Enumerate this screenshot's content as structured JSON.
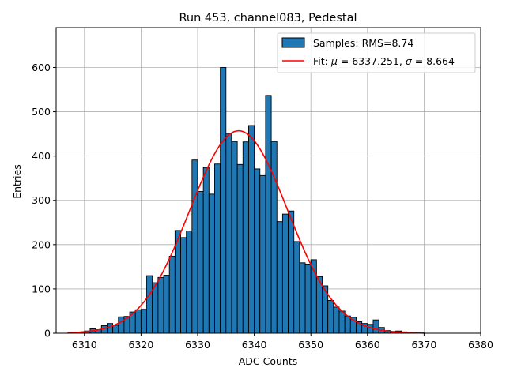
{
  "chart_data": {
    "type": "bar",
    "title": "Run 453, channel083, Pedestal",
    "xlabel": "ADC Counts",
    "ylabel": "Entries",
    "xlim": [
      6305,
      6380
    ],
    "ylim": [
      0,
      690
    ],
    "xticks": [
      6310,
      6320,
      6330,
      6340,
      6350,
      6360,
      6370,
      6380
    ],
    "yticks": [
      0,
      100,
      200,
      300,
      400,
      500,
      600
    ],
    "grid": true,
    "legend_position": "top-right",
    "bin_width": 1,
    "bins": [
      [
        6307,
        0
      ],
      [
        6308,
        1
      ],
      [
        6309,
        2
      ],
      [
        6310,
        5
      ],
      [
        6311,
        10
      ],
      [
        6312,
        8
      ],
      [
        6313,
        17
      ],
      [
        6314,
        22
      ],
      [
        6315,
        18
      ],
      [
        6316,
        37
      ],
      [
        6317,
        38
      ],
      [
        6318,
        48
      ],
      [
        6319,
        53
      ],
      [
        6320,
        54
      ],
      [
        6321,
        130
      ],
      [
        6322,
        114
      ],
      [
        6323,
        126
      ],
      [
        6324,
        131
      ],
      [
        6325,
        174
      ],
      [
        6326,
        232
      ],
      [
        6327,
        216
      ],
      [
        6328,
        231
      ],
      [
        6329,
        391
      ],
      [
        6330,
        320
      ],
      [
        6331,
        374
      ],
      [
        6332,
        314
      ],
      [
        6333,
        382
      ],
      [
        6334,
        600
      ],
      [
        6335,
        451
      ],
      [
        6336,
        433
      ],
      [
        6337,
        381
      ],
      [
        6338,
        432
      ],
      [
        6339,
        469
      ],
      [
        6340,
        371
      ],
      [
        6341,
        356
      ],
      [
        6342,
        537
      ],
      [
        6343,
        433
      ],
      [
        6344,
        252
      ],
      [
        6345,
        269
      ],
      [
        6346,
        276
      ],
      [
        6347,
        207
      ],
      [
        6348,
        159
      ],
      [
        6349,
        156
      ],
      [
        6350,
        166
      ],
      [
        6351,
        128
      ],
      [
        6352,
        107
      ],
      [
        6353,
        74
      ],
      [
        6354,
        59
      ],
      [
        6355,
        50
      ],
      [
        6356,
        39
      ],
      [
        6357,
        36
      ],
      [
        6358,
        26
      ],
      [
        6359,
        22
      ],
      [
        6360,
        20
      ],
      [
        6361,
        30
      ],
      [
        6362,
        13
      ],
      [
        6363,
        6
      ],
      [
        6364,
        4
      ],
      [
        6365,
        5
      ],
      [
        6366,
        3
      ],
      [
        6367,
        2
      ],
      [
        6368,
        1
      ],
      [
        6369,
        1
      ]
    ],
    "fit": {
      "mu": 6337.251,
      "sigma": 8.664,
      "amplitude": 457,
      "x_range": [
        6307,
        6370
      ]
    },
    "legend": [
      {
        "label": "Samples: RMS=8.74",
        "type": "patch",
        "color": "#1f77b4"
      },
      {
        "label_prefix": "Fit: ",
        "mu_symbol": "μ",
        "mu_text": " = 6337.251, ",
        "sigma_symbol": "σ",
        "sigma_text": " = 8.664",
        "type": "line",
        "color": "#ff0000"
      }
    ],
    "colors": {
      "bar": "#1f77b4",
      "bar_edge": "#000000",
      "fit": "#ff0000",
      "grid": "#b0b0b0"
    }
  }
}
